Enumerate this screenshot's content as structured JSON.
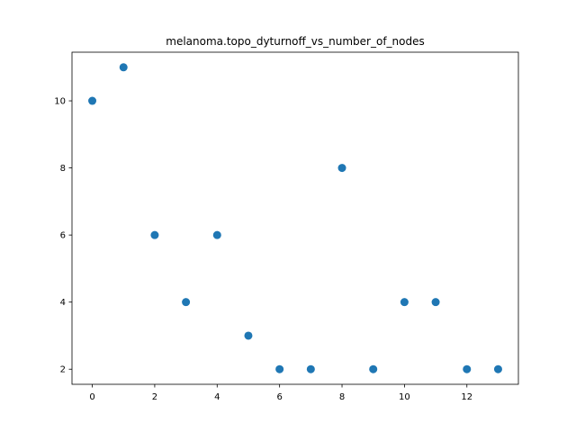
{
  "chart_data": {
    "type": "scatter",
    "title": "melanoma.topo_dyturnoff_vs_number_of_nodes",
    "xlabel": "",
    "ylabel": "",
    "x": [
      0,
      1,
      2,
      3,
      4,
      5,
      6,
      7,
      8,
      9,
      10,
      11,
      12,
      13
    ],
    "y": [
      10,
      11,
      6,
      4,
      6,
      3,
      2,
      2,
      8,
      2,
      4,
      4,
      2,
      2
    ],
    "xlim": [
      -0.65,
      13.65
    ],
    "ylim": [
      1.55,
      11.45
    ],
    "xticks": [
      0,
      2,
      4,
      6,
      8,
      10,
      12
    ],
    "yticks": [
      2,
      4,
      6,
      8,
      10
    ],
    "marker_color": "#1f77b4",
    "grid": false,
    "legend": "none"
  }
}
